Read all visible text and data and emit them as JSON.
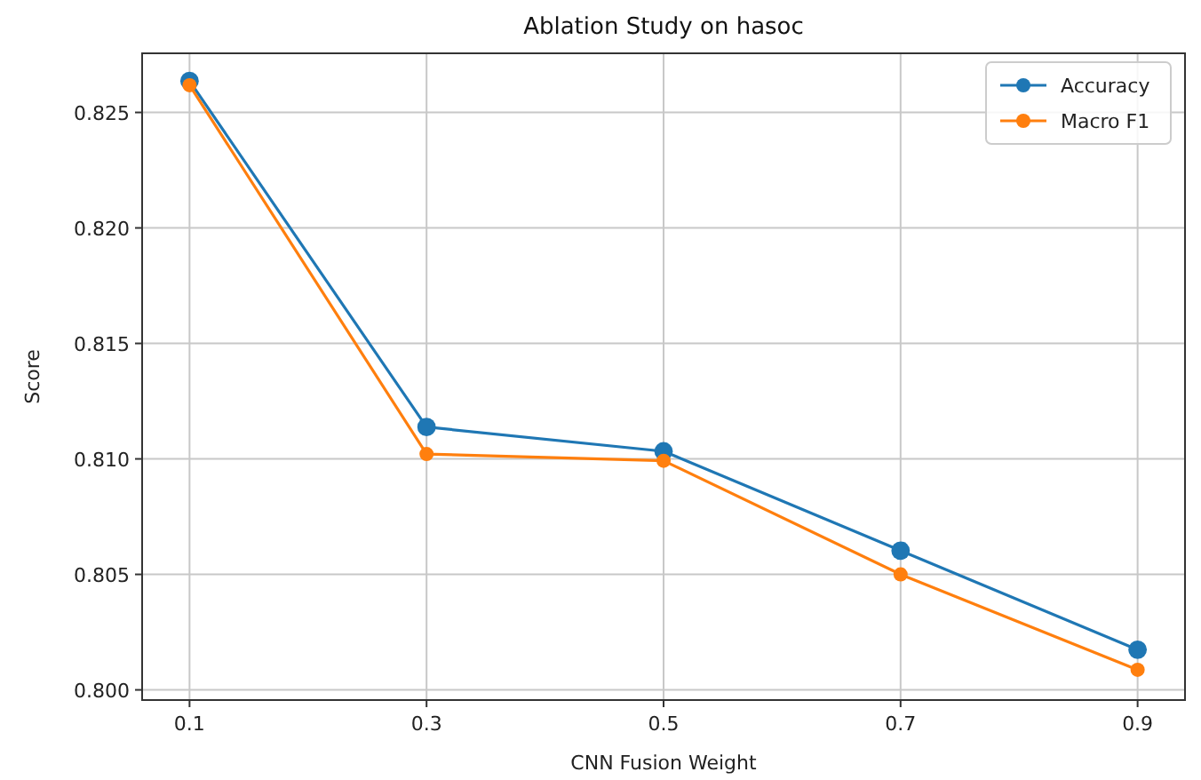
{
  "chart_data": {
    "type": "line",
    "title": "Ablation Study on hasoc",
    "xlabel": "CNN Fusion Weight",
    "ylabel": "Score",
    "x": [
      0.1,
      0.3,
      0.5,
      0.7,
      0.9
    ],
    "series": [
      {
        "name": "Accuracy",
        "color": "#1f77b4",
        "values": [
          0.82636,
          0.81138,
          0.81033,
          0.80603,
          0.80174
        ]
      },
      {
        "name": "Macro F1",
        "color": "#ff7f0e",
        "values": [
          0.82618,
          0.81021,
          0.80992,
          0.805,
          0.80087
        ]
      }
    ],
    "xlim": [
      0.06,
      0.94
    ],
    "xticks": [
      {
        "value": 0.1,
        "label": "0.1"
      },
      {
        "value": 0.3,
        "label": "0.3"
      },
      {
        "value": 0.5,
        "label": "0.5"
      },
      {
        "value": 0.7,
        "label": "0.7"
      },
      {
        "value": 0.9,
        "label": "0.9"
      }
    ],
    "ylim": [
      0.79956,
      0.82756
    ],
    "yticks": [
      {
        "value": 0.8,
        "label": "0.800"
      },
      {
        "value": 0.805,
        "label": "0.805"
      },
      {
        "value": 0.81,
        "label": "0.810"
      },
      {
        "value": 0.815,
        "label": "0.815"
      },
      {
        "value": 0.82,
        "label": "0.820"
      },
      {
        "value": 0.825,
        "label": "0.825"
      }
    ],
    "grid": true,
    "legend": "top right",
    "marker": "circle",
    "line_style": "solid"
  }
}
